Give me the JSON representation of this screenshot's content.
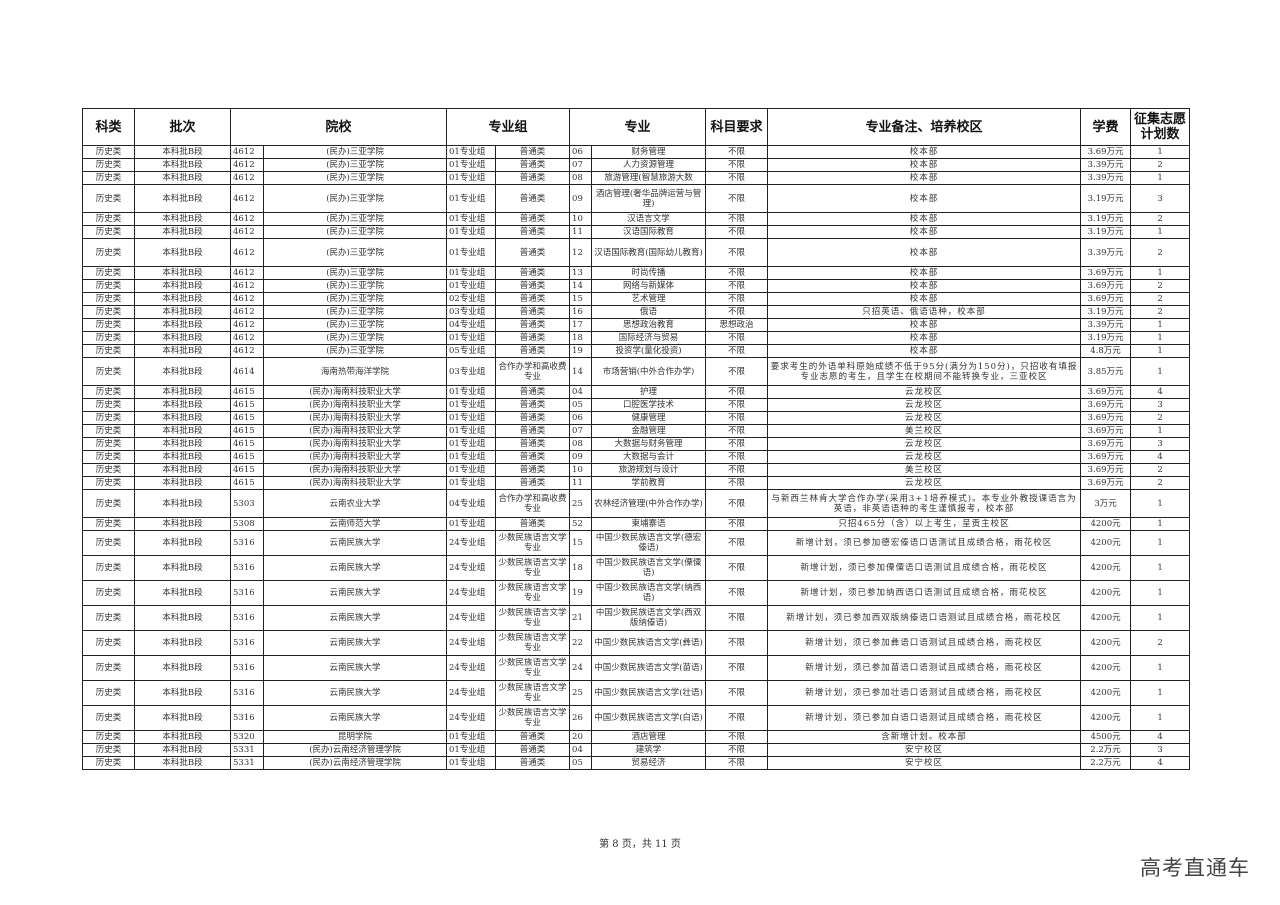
{
  "header": {
    "kelei": "科类",
    "pici": "批次",
    "yuanxiao": "院校",
    "zhuanyezu": "专业组",
    "zhuanye": "专业",
    "kemu": "科目要求",
    "beizhu": "专业备注、培养校区",
    "xuefei": "学费",
    "jihua": "征集志愿计划数"
  },
  "rows": [
    [
      "历史类",
      "本科批B段",
      "4612",
      "(民办)三亚学院",
      "01专业组",
      "普通类",
      "06",
      "财务管理",
      "不限",
      "校本部",
      "3.69万元",
      "1",
      "s"
    ],
    [
      "历史类",
      "本科批B段",
      "4612",
      "(民办)三亚学院",
      "01专业组",
      "普通类",
      "07",
      "人力资源管理",
      "不限",
      "校本部",
      "3.39万元",
      "2",
      "s"
    ],
    [
      "历史类",
      "本科批B段",
      "4612",
      "(民办)三亚学院",
      "01专业组",
      "普通类",
      "08",
      "旅游管理(智慧旅游大数",
      "不限",
      "校本部",
      "3.39万元",
      "1",
      "s"
    ],
    [
      "历史类",
      "本科批B段",
      "4612",
      "(民办)三亚学院",
      "01专业组",
      "普通类",
      "09",
      "酒店管理(奢华品牌运营与管理)",
      "不限",
      "校本部",
      "3.19万元",
      "3",
      "d"
    ],
    [
      "历史类",
      "本科批B段",
      "4612",
      "(民办)三亚学院",
      "01专业组",
      "普通类",
      "10",
      "汉语言文学",
      "不限",
      "校本部",
      "3.19万元",
      "2",
      "s"
    ],
    [
      "历史类",
      "本科批B段",
      "4612",
      "(民办)三亚学院",
      "01专业组",
      "普通类",
      "11",
      "汉语国际教育",
      "不限",
      "校本部",
      "3.19万元",
      "1",
      "s"
    ],
    [
      "历史类",
      "本科批B段",
      "4612",
      "(民办)三亚学院",
      "01专业组",
      "普通类",
      "12",
      "汉语国际教育(国际幼儿教育)",
      "不限",
      "校本部",
      "3.39万元",
      "2",
      "d"
    ],
    [
      "历史类",
      "本科批B段",
      "4612",
      "(民办)三亚学院",
      "01专业组",
      "普通类",
      "13",
      "时尚传播",
      "不限",
      "校本部",
      "3.69万元",
      "1",
      "s"
    ],
    [
      "历史类",
      "本科批B段",
      "4612",
      "(民办)三亚学院",
      "01专业组",
      "普通类",
      "14",
      "网络与新媒体",
      "不限",
      "校本部",
      "3.69万元",
      "2",
      "s"
    ],
    [
      "历史类",
      "本科批B段",
      "4612",
      "(民办)三亚学院",
      "02专业组",
      "普通类",
      "15",
      "艺术管理",
      "不限",
      "校本部",
      "3.69万元",
      "2",
      "s"
    ],
    [
      "历史类",
      "本科批B段",
      "4612",
      "(民办)三亚学院",
      "03专业组",
      "普通类",
      "16",
      "俄语",
      "不限",
      "只招英语、俄语语种，校本部",
      "3.19万元",
      "2",
      "s"
    ],
    [
      "历史类",
      "本科批B段",
      "4612",
      "(民办)三亚学院",
      "04专业组",
      "普通类",
      "17",
      "思想政治教育",
      "思想政治",
      "校本部",
      "3.39万元",
      "1",
      "s"
    ],
    [
      "历史类",
      "本科批B段",
      "4612",
      "(民办)三亚学院",
      "01专业组",
      "普通类",
      "18",
      "国际经济与贸易",
      "不限",
      "校本部",
      "3.19万元",
      "1",
      "s"
    ],
    [
      "历史类",
      "本科批B段",
      "4612",
      "(民办)三亚学院",
      "05专业组",
      "普通类",
      "19",
      "投资学(量化投资)",
      "不限",
      "校本部",
      "4.8万元",
      "1",
      "s"
    ],
    [
      "历史类",
      "本科批B段",
      "4614",
      "海南热带海洋学院",
      "03专业组",
      "合作办学和高收费专业",
      "14",
      "市场营销(中外合作办学)",
      "不限",
      "要求考生的外语单科原始成绩不低于95分(满分为150分)，只招收有填报专业志愿的考生，且学生在校期间不能转换专业，三亚校区",
      "3.85万元",
      "1",
      "d"
    ],
    [
      "历史类",
      "本科批B段",
      "4615",
      "(民办)海南科技职业大学",
      "01专业组",
      "普通类",
      "04",
      "护理",
      "不限",
      "云龙校区",
      "3.69万元",
      "4",
      "s"
    ],
    [
      "历史类",
      "本科批B段",
      "4615",
      "(民办)海南科技职业大学",
      "01专业组",
      "普通类",
      "05",
      "口腔医学技术",
      "不限",
      "云龙校区",
      "3.69万元",
      "3",
      "s"
    ],
    [
      "历史类",
      "本科批B段",
      "4615",
      "(民办)海南科技职业大学",
      "01专业组",
      "普通类",
      "06",
      "健康管理",
      "不限",
      "云龙校区",
      "3.69万元",
      "2",
      "s"
    ],
    [
      "历史类",
      "本科批B段",
      "4615",
      "(民办)海南科技职业大学",
      "01专业组",
      "普通类",
      "07",
      "金融管理",
      "不限",
      "美兰校区",
      "3.69万元",
      "1",
      "s"
    ],
    [
      "历史类",
      "本科批B段",
      "4615",
      "(民办)海南科技职业大学",
      "01专业组",
      "普通类",
      "08",
      "大数据与财务管理",
      "不限",
      "云龙校区",
      "3.69万元",
      "3",
      "s"
    ],
    [
      "历史类",
      "本科批B段",
      "4615",
      "(民办)海南科技职业大学",
      "01专业组",
      "普通类",
      "09",
      "大数据与会计",
      "不限",
      "云龙校区",
      "3.69万元",
      "4",
      "s"
    ],
    [
      "历史类",
      "本科批B段",
      "4615",
      "(民办)海南科技职业大学",
      "01专业组",
      "普通类",
      "10",
      "旅游规划与设计",
      "不限",
      "美兰校区",
      "3.69万元",
      "2",
      "s"
    ],
    [
      "历史类",
      "本科批B段",
      "4615",
      "(民办)海南科技职业大学",
      "01专业组",
      "普通类",
      "11",
      "学前教育",
      "不限",
      "云龙校区",
      "3.69万元",
      "2",
      "s"
    ],
    [
      "历史类",
      "本科批B段",
      "5303",
      "云南农业大学",
      "04专业组",
      "合作办学和高收费专业",
      "25",
      "农林经济管理(中外合作办学)",
      "不限",
      "与新西兰林肯大学合作办学(采用3+1培养模式)。本专业外教授课语言为英语，非英语语种的考生谨慎报考，校本部",
      "3万元",
      "1",
      "d"
    ],
    [
      "历史类",
      "本科批B段",
      "5308",
      "云南师范大学",
      "01专业组",
      "普通类",
      "52",
      "柬埔寨语",
      "不限",
      "只招465分（含）以上考生，呈贡主校区",
      "4200元",
      "1",
      "s"
    ],
    [
      "历史类",
      "本科批B段",
      "5316",
      "云南民族大学",
      "24专业组",
      "少数民族语言文学专业",
      "15",
      "中国少数民族语言文学(德宏傣语)",
      "不限",
      "新增计划，须已参加德宏傣语口语测试且成绩合格，雨花校区",
      "4200元",
      "1",
      "t"
    ],
    [
      "历史类",
      "本科批B段",
      "5316",
      "云南民族大学",
      "24专业组",
      "少数民族语言文学专业",
      "18",
      "中国少数民族语言文学(傈僳语)",
      "不限",
      "新增计划，须已参加傈僳语口语测试且成绩合格，雨花校区",
      "4200元",
      "1",
      "t"
    ],
    [
      "历史类",
      "本科批B段",
      "5316",
      "云南民族大学",
      "24专业组",
      "少数民族语言文学专业",
      "19",
      "中国少数民族语言文学(纳西语)",
      "不限",
      "新增计划，须已参加纳西语口语测试且成绩合格，雨花校区",
      "4200元",
      "1",
      "t"
    ],
    [
      "历史类",
      "本科批B段",
      "5316",
      "云南民族大学",
      "24专业组",
      "少数民族语言文学专业",
      "21",
      "中国少数民族语言文学(西双版纳傣语)",
      "不限",
      "新增计划，须已参加西双版纳傣语口语测试且成绩合格，雨花校区",
      "4200元",
      "1",
      "t"
    ],
    [
      "历史类",
      "本科批B段",
      "5316",
      "云南民族大学",
      "24专业组",
      "少数民族语言文学专业",
      "22",
      "中国少数民族语言文学(彝语)",
      "不限",
      "新增计划，须已参加彝语口语测试且成绩合格，雨花校区",
      "4200元",
      "2",
      "t"
    ],
    [
      "历史类",
      "本科批B段",
      "5316",
      "云南民族大学",
      "24专业组",
      "少数民族语言文学专业",
      "24",
      "中国少数民族语言文学(苗语)",
      "不限",
      "新增计划，须已参加苗语口语测试且成绩合格，雨花校区",
      "4200元",
      "1",
      "t"
    ],
    [
      "历史类",
      "本科批B段",
      "5316",
      "云南民族大学",
      "24专业组",
      "少数民族语言文学专业",
      "25",
      "中国少数民族语言文学(壮语)",
      "不限",
      "新增计划，须已参加壮语口语测试且成绩合格，雨花校区",
      "4200元",
      "1",
      "t"
    ],
    [
      "历史类",
      "本科批B段",
      "5316",
      "云南民族大学",
      "24专业组",
      "少数民族语言文学专业",
      "26",
      "中国少数民族语言文学(白语)",
      "不限",
      "新增计划，须已参加白语口语测试且成绩合格，雨花校区",
      "4200元",
      "1",
      "t"
    ],
    [
      "历史类",
      "本科批B段",
      "5320",
      "昆明学院",
      "01专业组",
      "普通类",
      "20",
      "酒店管理",
      "不限",
      "含新增计划。校本部",
      "4500元",
      "4",
      "s"
    ],
    [
      "历史类",
      "本科批B段",
      "5331",
      "(民办)云南经济管理学院",
      "01专业组",
      "普通类",
      "04",
      "建筑学",
      "不限",
      "安宁校区",
      "2.2万元",
      "3",
      "s"
    ],
    [
      "历史类",
      "本科批B段",
      "5331",
      "(民办)云南经济管理学院",
      "01专业组",
      "普通类",
      "05",
      "贸易经济",
      "不限",
      "安宁校区",
      "2.2万元",
      "4",
      "s"
    ]
  ],
  "footer": {
    "page_info": "第 8 页，共 11 页"
  },
  "watermark": "高考直通车"
}
